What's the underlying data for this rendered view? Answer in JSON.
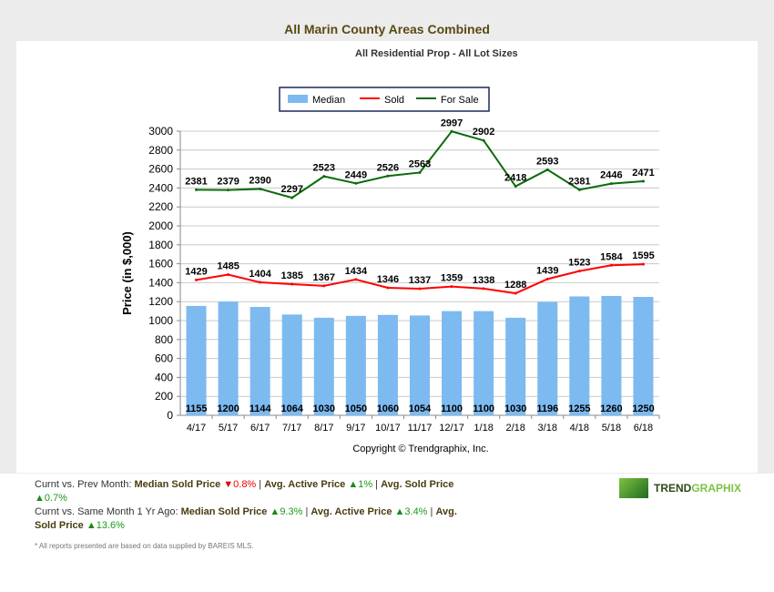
{
  "chart_data": {
    "type": "bar+line",
    "title": "All Marin County Areas Combined",
    "subtitle": "All Residential Prop - All Lot Sizes",
    "ylabel": "Price (in $,000)",
    "xlabel": "",
    "ylim": [
      0,
      3000
    ],
    "yticks": [
      0,
      200,
      400,
      600,
      800,
      1000,
      1200,
      1400,
      1600,
      1800,
      2000,
      2200,
      2400,
      2600,
      2800,
      3000
    ],
    "grid": true,
    "legend_position": "top-center",
    "categories": [
      "4/17",
      "5/17",
      "6/17",
      "7/17",
      "8/17",
      "9/17",
      "10/17",
      "11/17",
      "12/17",
      "1/18",
      "2/18",
      "3/18",
      "4/18",
      "5/18",
      "6/18"
    ],
    "series": [
      {
        "name": "Median",
        "type": "bar",
        "color": "#7cbaf0",
        "values": [
          1155,
          1200,
          1144,
          1064,
          1030,
          1050,
          1060,
          1054,
          1100,
          1100,
          1030,
          1196,
          1255,
          1260,
          1250
        ]
      },
      {
        "name": "Sold",
        "type": "line",
        "color": "#ff0000",
        "values": [
          1429,
          1485,
          1404,
          1385,
          1367,
          1434,
          1346,
          1337,
          1359,
          1338,
          1288,
          1439,
          1523,
          1584,
          1595
        ]
      },
      {
        "name": "For Sale",
        "type": "line",
        "color": "#0b6b0b",
        "values": [
          2381,
          2379,
          2390,
          2297,
          2523,
          2449,
          2526,
          2563,
          2997,
          2902,
          2418,
          2593,
          2381,
          2446,
          2471
        ]
      }
    ],
    "annotation": "Copyright © Trendgraphix, Inc."
  },
  "stats": {
    "line1_label": "Curnt vs. Prev Month:",
    "median_label": "Median Sold Price",
    "line1_median": "0.8%",
    "active_label": "Avg. Active Price",
    "line1_active": "1%",
    "sold_label": "Avg. Sold Price",
    "line1_sold": "0.7%",
    "line2_label": "Curnt vs. Same Month 1 Yr Ago:",
    "line2_median": "9.3%",
    "line2_active": "3.4%",
    "line2_sold": "13.6%"
  },
  "note": "* All reports presented are based on data supplied by BAREIS MLS.",
  "logo": {
    "part1": "TREND",
    "part2": "GRAPHIX"
  }
}
